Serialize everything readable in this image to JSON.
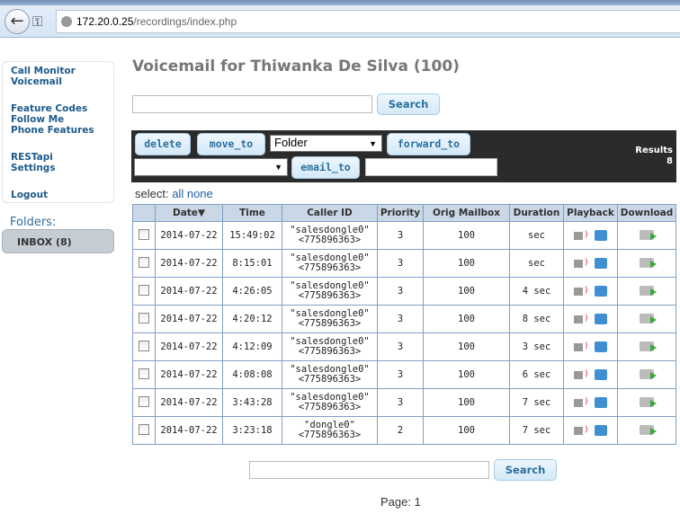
{
  "browser": {
    "url_host": "172.20.0.25",
    "url_path": "/recordings/index.php"
  },
  "sidebar": {
    "groups": [
      [
        "Call Monitor",
        "Voicemail"
      ],
      [
        "Feature Codes",
        "Follow Me",
        "Phone Features"
      ],
      [
        "RESTapi",
        "Settings"
      ],
      [
        "Logout"
      ]
    ],
    "folders_label": "Folders:",
    "inbox": "INBOX (8)"
  },
  "title": "Voicemail for Thiwanka De Silva (100)",
  "search": {
    "value": "",
    "button": "Search"
  },
  "toolbar": {
    "delete": "delete",
    "move_to": "move_to",
    "folder_select": "Folder",
    "forward_to": "forward_to",
    "forward_select": "",
    "email_to": "email_to",
    "email_value": "",
    "results_label": "Results",
    "results_count": "8"
  },
  "select": {
    "label": "select:",
    "all": "all",
    "none": "none"
  },
  "table": {
    "headers": [
      "",
      "Date",
      "Time",
      "Caller ID",
      "Priority",
      "Orig Mailbox",
      "Duration",
      "Playback",
      "Download"
    ],
    "sort_indicator": "▼",
    "rows": [
      {
        "date": "2014-07-22",
        "time": "15:49:02",
        "caller1": "\"salesdongle0\"",
        "caller2": "<775896363>",
        "priority": "3",
        "mailbox": "100",
        "duration": "sec"
      },
      {
        "date": "2014-07-22",
        "time": "8:15:01",
        "caller1": "\"salesdongle0\"",
        "caller2": "<775896363>",
        "priority": "3",
        "mailbox": "100",
        "duration": "sec"
      },
      {
        "date": "2014-07-22",
        "time": "4:26:05",
        "caller1": "\"salesdongle0\"",
        "caller2": "<775896363>",
        "priority": "3",
        "mailbox": "100",
        "duration": "4 sec"
      },
      {
        "date": "2014-07-22",
        "time": "4:20:12",
        "caller1": "\"salesdongle0\"",
        "caller2": "<775896363>",
        "priority": "3",
        "mailbox": "100",
        "duration": "8 sec"
      },
      {
        "date": "2014-07-22",
        "time": "4:12:09",
        "caller1": "\"salesdongle0\"",
        "caller2": "<775896363>",
        "priority": "3",
        "mailbox": "100",
        "duration": "3 sec"
      },
      {
        "date": "2014-07-22",
        "time": "4:08:08",
        "caller1": "\"salesdongle0\"",
        "caller2": "<775896363>",
        "priority": "3",
        "mailbox": "100",
        "duration": "6 sec"
      },
      {
        "date": "2014-07-22",
        "time": "3:43:28",
        "caller1": "\"salesdongle0\"",
        "caller2": "<775896363>",
        "priority": "3",
        "mailbox": "100",
        "duration": "7 sec"
      },
      {
        "date": "2014-07-22",
        "time": "3:23:18",
        "caller1": "\"dongle0\"",
        "caller2": "<775896363>",
        "priority": "2",
        "mailbox": "100",
        "duration": "7 sec"
      }
    ]
  },
  "bottom_search": {
    "value": "",
    "button": "Search"
  },
  "pagination": "Page: 1"
}
